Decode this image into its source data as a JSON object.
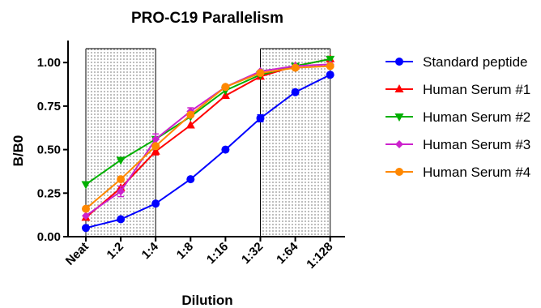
{
  "chart_data": {
    "type": "line",
    "title": "PRO-C19 Parallelism",
    "xlabel": "Dilution",
    "ylabel": "B/B0",
    "categories": [
      "Neat",
      "1:2",
      "1:4",
      "1:8",
      "1:16",
      "1:32",
      "1:64",
      "1:128"
    ],
    "yticks": [
      "0.00",
      "0.25",
      "0.50",
      "0.75",
      "1.00"
    ],
    "ylim": [
      0,
      1.08
    ],
    "grid": false,
    "legend_position": "right",
    "shaded_regions": [
      {
        "from": "Neat",
        "to": "1:4"
      },
      {
        "from": "1:32",
        "to": "1:128"
      }
    ],
    "series": [
      {
        "name": "Standard peptide",
        "color": "#0000ff",
        "marker": "circle",
        "values": [
          0.05,
          0.1,
          0.19,
          0.33,
          0.5,
          0.68,
          0.83,
          0.93
        ],
        "errors": [
          0,
          0,
          0,
          0,
          0,
          0.02,
          0,
          0
        ]
      },
      {
        "name": "Human Serum #1",
        "color": "#ff0000",
        "marker": "triangle-up",
        "values": [
          0.11,
          0.28,
          0.49,
          0.64,
          0.81,
          0.92,
          0.98,
          1.02
        ],
        "errors": [
          0,
          0,
          0.02,
          0,
          0,
          0,
          0,
          0
        ]
      },
      {
        "name": "Human Serum #2",
        "color": "#00b000",
        "marker": "triangle-down",
        "values": [
          0.3,
          0.44,
          0.56,
          0.69,
          0.84,
          0.93,
          0.98,
          1.02
        ],
        "errors": [
          0,
          0,
          0,
          0,
          0,
          0,
          0,
          0
        ]
      },
      {
        "name": "Human Serum #3",
        "color": "#cc22cc",
        "marker": "diamond",
        "values": [
          0.12,
          0.26,
          0.56,
          0.72,
          0.86,
          0.95,
          0.98,
          0.99
        ],
        "errors": [
          0,
          0.03,
          0.03,
          0.02,
          0,
          0,
          0,
          0
        ]
      },
      {
        "name": "Human Serum #4",
        "color": "#ff8800",
        "marker": "circle",
        "values": [
          0.16,
          0.33,
          0.52,
          0.7,
          0.86,
          0.94,
          0.97,
          0.98
        ],
        "errors": [
          0,
          0,
          0,
          0,
          0,
          0,
          0,
          0
        ]
      }
    ]
  }
}
